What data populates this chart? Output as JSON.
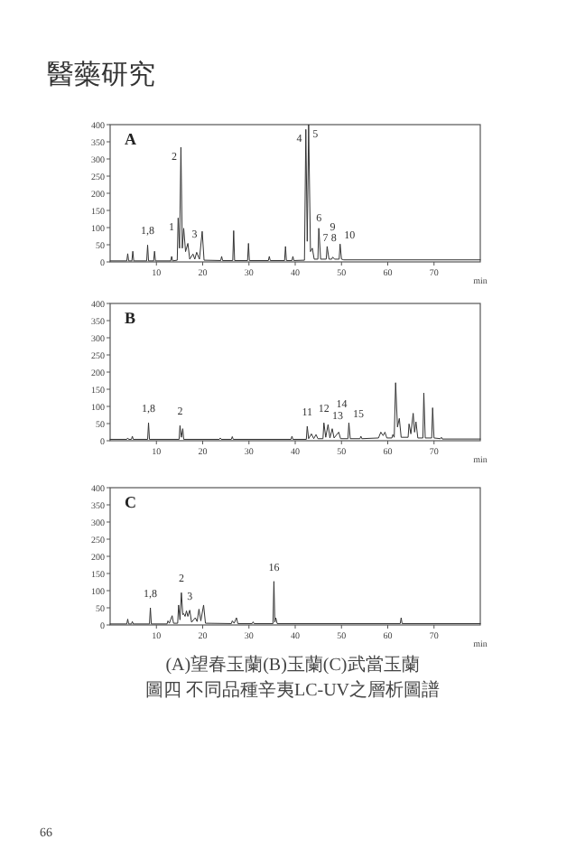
{
  "chart_data": [
    {
      "type": "line",
      "title": "A",
      "xlabel": "min",
      "xlim": [
        0,
        80
      ],
      "ylim": [
        0,
        400
      ],
      "xticks": [
        10,
        20,
        30,
        40,
        50,
        60,
        70
      ],
      "yticks": [
        0,
        50,
        100,
        150,
        200,
        250,
        300,
        350,
        400
      ],
      "series": [
        {
          "color": "#333333",
          "x": [
            0,
            3.6,
            3.8,
            4.0,
            4.7,
            4.9,
            5.1,
            7.9,
            8.1,
            8.3,
            9.4,
            9.6,
            9.8,
            13.1,
            13.3,
            13.5,
            14.5,
            14.7,
            15.0,
            15.3,
            15.6,
            15.9,
            16.3,
            16.8,
            17.2,
            17.9,
            18.3,
            18.7,
            19.3,
            19.9,
            20.3,
            23.9,
            24.1,
            24.3,
            26.5,
            26.7,
            26.9,
            29.7,
            29.9,
            30.1,
            34.2,
            34.4,
            34.6,
            37.7,
            37.9,
            38.1,
            39.3,
            39.5,
            39.7,
            42.0,
            42.3,
            42.6,
            42.9,
            43.3,
            43.7,
            44.1,
            44.9,
            45.1,
            45.5,
            46.7,
            46.9,
            47.3,
            47.9,
            48.1,
            48.5,
            49.5,
            49.7,
            50.0,
            50.5,
            80
          ],
          "values": [
            3,
            3,
            24,
            3,
            3,
            31,
            3,
            3,
            49,
            3,
            3,
            31,
            3,
            3,
            16,
            3,
            5,
            128,
            40,
            334,
            40,
            98,
            30,
            54,
            8,
            23,
            8,
            28,
            8,
            89,
            5,
            4,
            16,
            4,
            4,
            91,
            4,
            4,
            54,
            4,
            4,
            16,
            4,
            4,
            45,
            4,
            4,
            16,
            4,
            5,
            386,
            60,
            400,
            30,
            40,
            8,
            8,
            98,
            8,
            8,
            45,
            8,
            8,
            14,
            8,
            8,
            52,
            8,
            6,
            6
          ]
        }
      ],
      "annotations": [
        "醫藥研究",
        {
          "text": "1,8",
          "x": 8.1,
          "y": 49
        },
        {
          "text": "1",
          "x": 14.7,
          "y": 128
        },
        {
          "text": "2",
          "x": 15.3,
          "y": 334
        },
        {
          "text": "3",
          "x": 16.8,
          "y": 54
        },
        {
          "text": "4",
          "x": 42.3,
          "y": 386
        },
        {
          "text": "5",
          "x": 42.9,
          "y": 400
        },
        {
          "text": "6",
          "x": 43.7,
          "y": 40
        },
        {
          "text": "7",
          "x": 45.1,
          "y": 98
        },
        {
          "text": "8",
          "x": 46.9,
          "y": 45
        },
        {
          "text": "9",
          "x": 48.1,
          "y": 14
        },
        {
          "text": "10",
          "x": 49.7,
          "y": 52
        }
      ]
    },
    {
      "type": "line",
      "title": "B",
      "xlabel": "min",
      "xlim": [
        0,
        80
      ],
      "ylim": [
        0,
        400
      ],
      "xticks": [
        10,
        20,
        30,
        40,
        50,
        60,
        70
      ],
      "yticks": [
        0,
        50,
        100,
        150,
        200,
        250,
        300,
        350,
        400
      ],
      "series": [
        {
          "color": "#333333",
          "x": [
            0,
            3.6,
            3.8,
            4.0,
            4.6,
            4.8,
            5.0,
            8.1,
            8.3,
            8.5,
            14.9,
            15.1,
            15.4,
            15.7,
            15.9,
            23.6,
            23.8,
            24.0,
            26.2,
            26.4,
            26.6,
            39.1,
            39.3,
            39.5,
            42.4,
            42.6,
            42.9,
            43.5,
            44.0,
            44.5,
            44.9,
            46.0,
            46.2,
            46.6,
            47.1,
            47.5,
            48.0,
            48.4,
            49.4,
            49.8,
            51.4,
            51.6,
            51.9,
            54.0,
            54.2,
            54.4,
            58.0,
            58.5,
            59.0,
            59.4,
            59.8,
            60.9,
            61.1,
            61.4,
            61.7,
            62.1,
            62.5,
            62.9,
            64.4,
            64.6,
            65.0,
            65.5,
            65.8,
            66.1,
            66.5,
            67.6,
            67.8,
            68.1,
            69.5,
            69.7,
            70.0,
            71.4,
            71.6,
            71.8,
            80
          ],
          "values": [
            4,
            4,
            8,
            4,
            4,
            13,
            4,
            4,
            52,
            4,
            4,
            44,
            10,
            35,
            4,
            4,
            8,
            4,
            4,
            12,
            4,
            4,
            13,
            4,
            4,
            42,
            6,
            20,
            6,
            18,
            6,
            6,
            52,
            10,
            47,
            8,
            35,
            8,
            25,
            6,
            6,
            52,
            6,
            6,
            13,
            6,
            8,
            25,
            15,
            25,
            8,
            8,
            18,
            10,
            169,
            40,
            65,
            10,
            10,
            49,
            20,
            80,
            25,
            55,
            8,
            8,
            139,
            8,
            8,
            96,
            8,
            6,
            10,
            5,
            5
          ]
        }
      ],
      "annotations": [
        {
          "text": "1,8",
          "x": 8.3,
          "y": 52
        },
        {
          "text": "2",
          "x": 15.1,
          "y": 44
        },
        {
          "text": "11",
          "x": 42.6,
          "y": 42
        },
        {
          "text": "12",
          "x": 46.2,
          "y": 52
        },
        {
          "text": "13",
          "x": 47.1,
          "y": 47
        },
        {
          "text": "14",
          "x": 48.0,
          "y": 35
        },
        {
          "text": "15",
          "x": 51.6,
          "y": 52
        }
      ]
    },
    {
      "type": "line",
      "title": "C",
      "xlabel": "min",
      "xlim": [
        0,
        80
      ],
      "ylim": [
        0,
        400
      ],
      "xticks": [
        10,
        20,
        30,
        40,
        50,
        60,
        70
      ],
      "yticks": [
        0,
        50,
        100,
        150,
        200,
        250,
        300,
        350,
        400
      ],
      "series": [
        {
          "color": "#333333",
          "x": [
            0,
            3.6,
            3.8,
            4.0,
            4.6,
            4.8,
            5.0,
            8.5,
            8.7,
            8.9,
            12.3,
            12.5,
            12.8,
            13.4,
            13.7,
            14.6,
            14.8,
            15.1,
            15.4,
            15.7,
            15.9,
            16.2,
            16.5,
            16.8,
            17.2,
            17.6,
            18.4,
            18.8,
            19.2,
            19.6,
            20.2,
            20.6,
            26.2,
            26.4,
            26.8,
            27.3,
            27.6,
            30.7,
            30.9,
            31.1,
            35.2,
            35.4,
            35.6,
            35.8,
            36.1,
            62.7,
            62.9,
            63.1,
            80
          ],
          "values": [
            3,
            3,
            17,
            3,
            3,
            10,
            3,
            3,
            50,
            3,
            3,
            12,
            5,
            27,
            5,
            5,
            58,
            15,
            94,
            30,
            33,
            25,
            41,
            25,
            43,
            8,
            21,
            10,
            46,
            12,
            58,
            5,
            4,
            12,
            5,
            21,
            4,
            4,
            9,
            4,
            4,
            127,
            8,
            21,
            4,
            4,
            21,
            4,
            4
          ]
        }
      ],
      "annotations": [
        "(A)望春玉蘭(B)玉蘭(C)武當玉蘭",
        "圖四 不同品種辛夷LC-UV之層析圖譜",
        "66",
        {
          "text": "1,8",
          "x": 8.7,
          "y": 50
        },
        {
          "text": "2",
          "x": 15.4,
          "y": 94
        },
        {
          "text": "3",
          "x": 17.2,
          "y": 43
        },
        {
          "text": "16",
          "x": 35.4,
          "y": 127
        }
      ]
    }
  ]
}
